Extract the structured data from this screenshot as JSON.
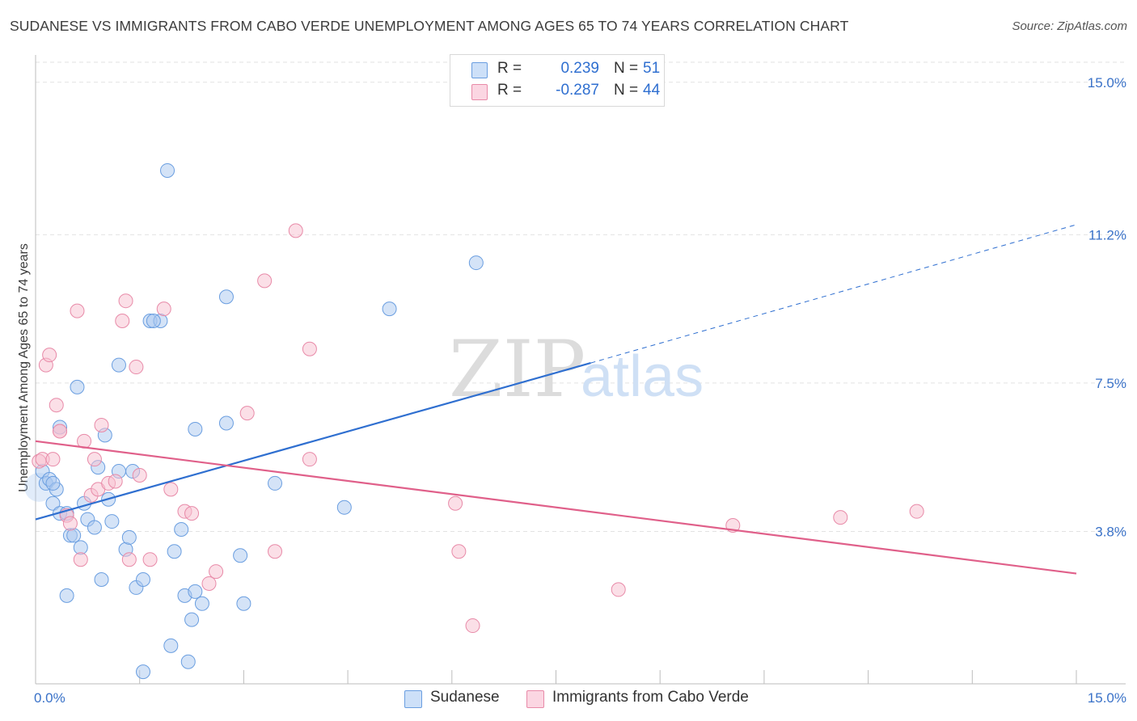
{
  "title": "SUDANESE VS IMMIGRANTS FROM CABO VERDE UNEMPLOYMENT AMONG AGES 65 TO 74 YEARS CORRELATION CHART",
  "source": "Source: ZipAtlas.com",
  "watermark": {
    "zip": "ZIP",
    "atlas": "atlas"
  },
  "legend": {
    "r_label": "R =",
    "n_label": "N =",
    "rows": [
      {
        "name": "Sudanese",
        "r": "0.239",
        "n": "51",
        "color": "#a9c8f0",
        "border": "#6a9ee0"
      },
      {
        "name": "Immigrants from Cabo Verde",
        "r": "-0.287",
        "n": "44",
        "color": "#f7bfd0",
        "border": "#e88aa8"
      }
    ]
  },
  "chart_data": {
    "type": "scatter",
    "title": "SUDANESE VS IMMIGRANTS FROM CABO VERDE UNEMPLOYMENT AMONG AGES 65 TO 74 YEARS CORRELATION CHART",
    "xlabel": "",
    "ylabel": "Unemployment Among Ages 65 to 74 years",
    "xlim": [
      0,
      15
    ],
    "ylim": [
      0,
      15.5
    ],
    "x_tick_labels": [
      "0.0%",
      "15.0%"
    ],
    "y_ticks": [
      3.8,
      7.5,
      11.2,
      15.0
    ],
    "y_tick_labels": [
      "3.8%",
      "7.5%",
      "11.2%",
      "15.0%"
    ],
    "series": [
      {
        "name": "Sudanese",
        "color": "#a9c8f0",
        "stroke": "#6a9ee0",
        "trend": {
          "x0": 0,
          "y0": 4.1,
          "x1": 8.0,
          "y1": 8.0,
          "dash_to_x": 15.0,
          "dash_to_y": 11.45,
          "color": "#2f6fd0"
        },
        "points": [
          [
            0.1,
            5.3
          ],
          [
            0.15,
            5.0
          ],
          [
            0.2,
            5.1
          ],
          [
            0.3,
            4.85
          ],
          [
            0.35,
            6.4
          ],
          [
            0.25,
            4.5
          ],
          [
            0.35,
            4.25
          ],
          [
            0.45,
            4.25
          ],
          [
            0.5,
            3.7
          ],
          [
            0.55,
            3.7
          ],
          [
            0.6,
            7.4
          ],
          [
            0.65,
            3.4
          ],
          [
            0.7,
            4.5
          ],
          [
            0.75,
            4.1
          ],
          [
            0.85,
            3.9
          ],
          [
            0.9,
            5.4
          ],
          [
            0.95,
            2.6
          ],
          [
            1.0,
            6.2
          ],
          [
            1.05,
            4.6
          ],
          [
            1.1,
            4.05
          ],
          [
            1.2,
            5.3
          ],
          [
            1.3,
            3.35
          ],
          [
            1.35,
            3.65
          ],
          [
            1.4,
            5.3
          ],
          [
            1.45,
            2.4
          ],
          [
            1.55,
            2.6
          ],
          [
            1.65,
            9.05
          ],
          [
            1.8,
            9.05
          ],
          [
            1.9,
            12.8
          ],
          [
            1.95,
            0.95
          ],
          [
            2.0,
            3.3
          ],
          [
            2.1,
            3.85
          ],
          [
            2.15,
            2.2
          ],
          [
            2.2,
            0.55
          ],
          [
            2.25,
            1.6
          ],
          [
            2.3,
            2.3
          ],
          [
            2.4,
            2.0
          ],
          [
            2.3,
            6.35
          ],
          [
            2.75,
            6.5
          ],
          [
            2.75,
            9.65
          ],
          [
            2.95,
            3.2
          ],
          [
            3.0,
            2.0
          ],
          [
            3.45,
            5.0
          ],
          [
            4.45,
            4.4
          ],
          [
            5.1,
            9.35
          ],
          [
            6.35,
            10.5
          ],
          [
            1.55,
            0.3
          ],
          [
            0.45,
            2.2
          ],
          [
            1.2,
            7.95
          ],
          [
            0.25,
            5.0
          ],
          [
            1.7,
            9.05
          ]
        ]
      },
      {
        "name": "Immigrants from Cabo Verde",
        "color": "#f7bfd0",
        "stroke": "#e88aa8",
        "trend": {
          "x0": 0,
          "y0": 6.05,
          "x1": 15.0,
          "y1": 2.75,
          "color": "#e0608a"
        },
        "points": [
          [
            0.05,
            5.55
          ],
          [
            0.1,
            5.6
          ],
          [
            0.15,
            7.95
          ],
          [
            0.2,
            8.2
          ],
          [
            0.25,
            5.6
          ],
          [
            0.3,
            6.95
          ],
          [
            0.35,
            6.3
          ],
          [
            0.45,
            4.2
          ],
          [
            0.5,
            4.0
          ],
          [
            0.6,
            9.3
          ],
          [
            0.65,
            3.1
          ],
          [
            0.7,
            6.05
          ],
          [
            0.8,
            4.7
          ],
          [
            0.85,
            5.6
          ],
          [
            0.9,
            4.85
          ],
          [
            0.95,
            6.45
          ],
          [
            1.05,
            5.0
          ],
          [
            1.15,
            5.05
          ],
          [
            1.25,
            9.05
          ],
          [
            1.3,
            9.55
          ],
          [
            1.35,
            3.1
          ],
          [
            1.45,
            7.9
          ],
          [
            1.5,
            5.2
          ],
          [
            1.65,
            3.1
          ],
          [
            1.85,
            9.35
          ],
          [
            1.95,
            4.85
          ],
          [
            2.15,
            4.3
          ],
          [
            2.25,
            4.25
          ],
          [
            2.5,
            2.5
          ],
          [
            2.6,
            2.8
          ],
          [
            3.05,
            6.75
          ],
          [
            3.3,
            10.05
          ],
          [
            3.45,
            3.3
          ],
          [
            3.75,
            11.3
          ],
          [
            3.95,
            8.35
          ],
          [
            3.95,
            5.6
          ],
          [
            6.05,
            4.5
          ],
          [
            6.1,
            3.3
          ],
          [
            6.3,
            1.45
          ],
          [
            8.4,
            2.35
          ],
          [
            10.05,
            3.95
          ],
          [
            11.6,
            4.15
          ],
          [
            12.7,
            4.3
          ],
          [
            0.35,
            6.3
          ]
        ]
      }
    ]
  }
}
